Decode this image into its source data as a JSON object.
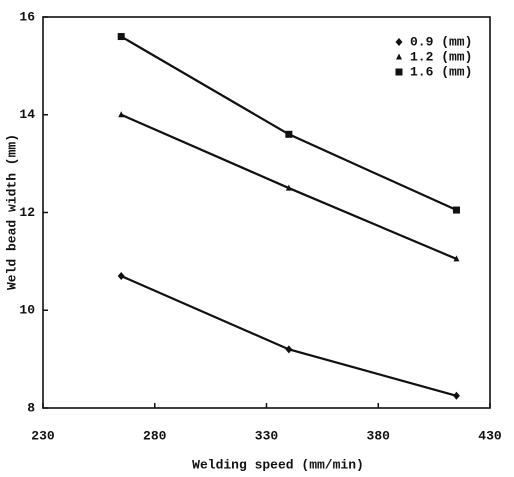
{
  "chart_data": {
    "type": "line",
    "x_label": "Welding speed (mm/min)",
    "y_label": "Weld bead width (mm)",
    "x": [
      265,
      340,
      415
    ],
    "series": [
      {
        "name": "0.9 (mm)",
        "color": "#111111",
        "marker": "diamond",
        "values": [
          10.7,
          9.2,
          8.25
        ]
      },
      {
        "name": "1.2 (mm)",
        "color": "#111111",
        "marker": "triangle",
        "values": [
          14.0,
          12.5,
          11.05
        ]
      },
      {
        "name": "1.6 (mm)",
        "color": "#111111",
        "marker": "square",
        "values": [
          15.6,
          13.6,
          12.05
        ]
      }
    ],
    "xlim": [
      230,
      430
    ],
    "xticks": [
      230,
      280,
      330,
      380,
      430
    ],
    "ylim": [
      8,
      16
    ],
    "yticks": [
      8,
      10,
      12,
      14,
      16
    ],
    "grid": false,
    "legend": "upper right"
  }
}
